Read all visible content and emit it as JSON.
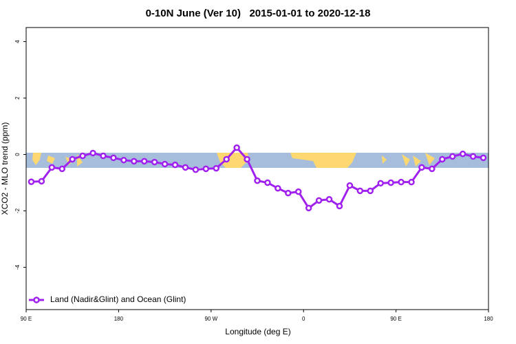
{
  "chart_data": {
    "type": "line",
    "title": "0-10N June (Ver 10)   2015-01-01 to 2020-12-18",
    "x_label": "Longitude (deg E)",
    "y_label": "XCO2 - MLO trend (ppm)",
    "xlim": [
      90,
      540
    ],
    "ylim": [
      -5.5,
      4.5
    ],
    "xticks": [
      {
        "value": 90,
        "label": "90 E"
      },
      {
        "value": 180,
        "label": "180"
      },
      {
        "value": 270,
        "label": "90 W"
      },
      {
        "value": 360,
        "label": "0"
      },
      {
        "value": 450,
        "label": "90 E"
      },
      {
        "value": 540,
        "label": "180"
      }
    ],
    "yticks": [
      -4,
      -2,
      0,
      2,
      4
    ],
    "legend": "bottom-left",
    "x": [
      95,
      105,
      115,
      125,
      135,
      145,
      155,
      165,
      175,
      185,
      195,
      205,
      215,
      225,
      235,
      245,
      255,
      265,
      275,
      285,
      295,
      305,
      315,
      325,
      335,
      345,
      355,
      365,
      375,
      385,
      395,
      405,
      415,
      425,
      435,
      445,
      455,
      465,
      475,
      485,
      495,
      505,
      515,
      525,
      535
    ],
    "series": [
      {
        "name": "Land (Nadir&Glint) and Ocean (Glint)",
        "color": "#a020f0",
        "values": [
          -0.97,
          -0.95,
          -0.46,
          -0.51,
          -0.17,
          -0.05,
          0.05,
          -0.05,
          -0.12,
          -0.2,
          -0.24,
          -0.24,
          -0.27,
          -0.34,
          -0.37,
          -0.46,
          -0.54,
          -0.51,
          -0.49,
          -0.17,
          0.24,
          -0.17,
          -0.93,
          -1.0,
          -1.2,
          -1.37,
          -1.32,
          -1.9,
          -1.63,
          -1.59,
          -1.83,
          -1.1,
          -1.29,
          -1.29,
          -1.02,
          -1.0,
          -0.98,
          -0.98,
          -0.46,
          -0.51,
          -0.17,
          -0.07,
          0.02,
          -0.07,
          -0.12
        ]
      }
    ]
  }
}
